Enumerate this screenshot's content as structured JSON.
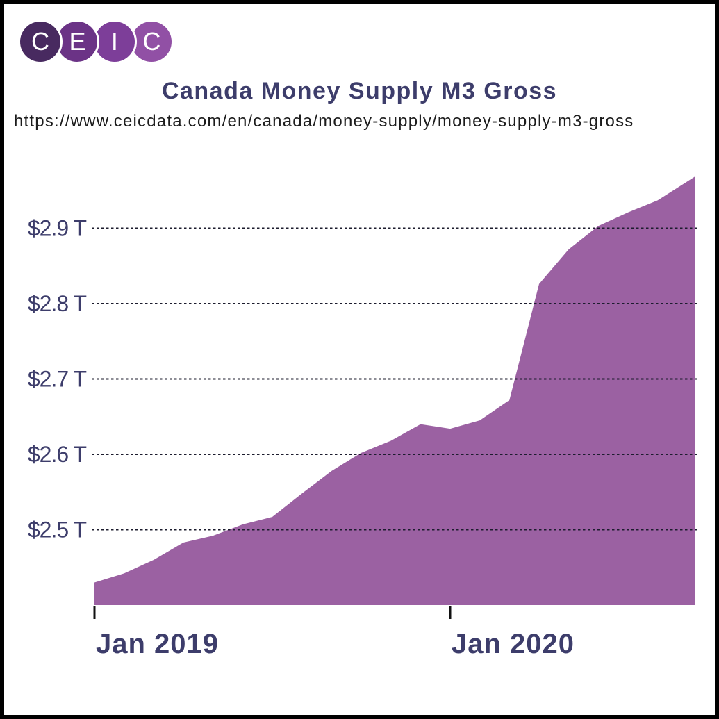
{
  "logo": {
    "letters": [
      "C",
      "E",
      "I",
      "C"
    ],
    "circle_colors": [
      "#482a60",
      "#6b3386",
      "#7d3e99",
      "#9150a5"
    ]
  },
  "header": {
    "title": "Canada Money Supply M3 Gross",
    "url": "https://www.ceicdata.com/en/canada/money-supply/money-supply-m3-gross"
  },
  "chart_data": {
    "type": "area",
    "title": "Canada Money Supply M3 Gross",
    "x": [
      "Jan 2019",
      "Feb 2019",
      "Mar 2019",
      "Apr 2019",
      "May 2019",
      "Jun 2019",
      "Jul 2019",
      "Aug 2019",
      "Sep 2019",
      "Oct 2019",
      "Nov 2019",
      "Dec 2019",
      "Jan 2020",
      "Feb 2020",
      "Mar 2020",
      "Apr 2020",
      "May 2020",
      "Jun 2020",
      "Jul 2020",
      "Aug 2020",
      "Sep 2020"
    ],
    "values": [
      2.43,
      2.442,
      2.46,
      2.483,
      2.492,
      2.507,
      2.517,
      2.548,
      2.578,
      2.602,
      2.618,
      2.64,
      2.634,
      2.645,
      2.672,
      2.826,
      2.872,
      2.903,
      2.921,
      2.937,
      2.962
    ],
    "unit_format": "$ T",
    "yticks": [
      {
        "value": 2.9,
        "label": "$2.9 T"
      },
      {
        "value": 2.8,
        "label": "$2.8 T"
      },
      {
        "value": 2.7,
        "label": "$2.7 T"
      },
      {
        "value": 2.6,
        "label": "$2.6 T"
      },
      {
        "value": 2.5,
        "label": "$2.5 T"
      }
    ],
    "xticks": [
      {
        "index": 0,
        "label": "Jan 2019"
      },
      {
        "index": 12,
        "label": "Jan 2020"
      }
    ],
    "ylim": [
      2.4,
      2.98
    ],
    "grid": "horizontal-dashed",
    "legend": "none",
    "area_color": "#9b61a2",
    "gridline_color": "#1c1c2e",
    "axis_text_color": "#3d3d6b"
  }
}
